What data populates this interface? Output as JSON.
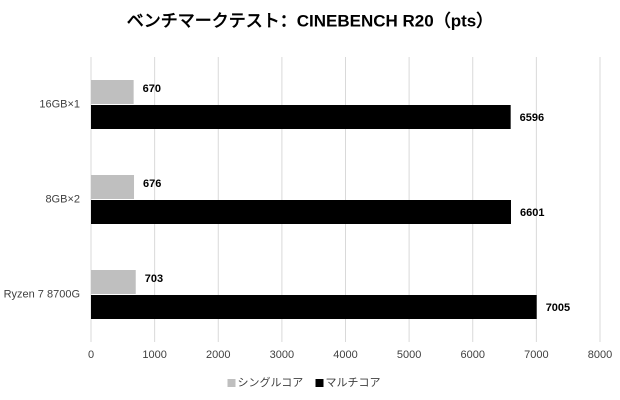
{
  "chart_data": {
    "type": "bar",
    "orientation": "horizontal",
    "title": "ベンチマークテスト：CINEBENCH R20（pts）",
    "categories": [
      "16GB×1",
      "8GB×2",
      "Ryzen 7 8700G"
    ],
    "series": [
      {
        "name": "シングルコア",
        "color": "#bfbfbf",
        "values": [
          670,
          676,
          703
        ]
      },
      {
        "name": "マルチコア",
        "color": "#000000",
        "values": [
          6596,
          6601,
          7005
        ]
      }
    ],
    "xlim": [
      0,
      8000
    ],
    "xticks": [
      0,
      1000,
      2000,
      3000,
      4000,
      5000,
      6000,
      7000,
      8000
    ],
    "grid": true,
    "legend": "bottom"
  }
}
